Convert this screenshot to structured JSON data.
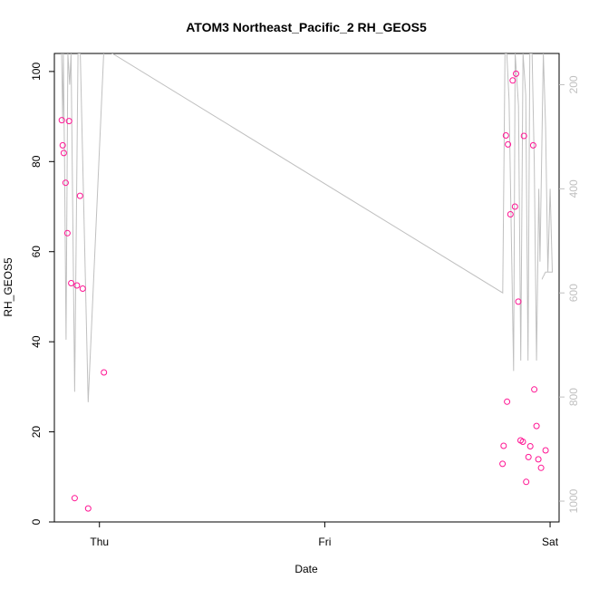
{
  "chart_data": {
    "type": "scatter",
    "title": "ATOM3 Northeast_Pacific_2 RH_GEOS5",
    "xlabel": "Date",
    "ylabel": "RH_GEOS5",
    "x_ticks": [
      {
        "label": "Thu",
        "value": 0
      },
      {
        "label": "Fri",
        "value": 1
      },
      {
        "label": "Sat",
        "value": 2
      }
    ],
    "xlim": [
      -0.2,
      2.04
    ],
    "ylim": [
      0,
      104
    ],
    "y_ticks": [
      0,
      20,
      40,
      60,
      80,
      100
    ],
    "y2_label": "",
    "y2_ticks": [
      200,
      400,
      600,
      800,
      1000
    ],
    "y2_lim": [
      1040,
      140
    ],
    "y2_reversed": true,
    "colors": {
      "points": "#ff1493",
      "line": "#c0c0c0",
      "axis": "#000000",
      "axis_right": "#c0c0c0"
    },
    "series": [
      {
        "kind": "points",
        "axis": "left",
        "points": [
          [
            -0.167,
            89.2
          ],
          [
            -0.163,
            83.6
          ],
          [
            -0.158,
            81.9
          ],
          [
            -0.15,
            75.3
          ],
          [
            -0.142,
            64.1
          ],
          [
            -0.135,
            89.0
          ],
          [
            -0.125,
            53.0
          ],
          [
            -0.11,
            5.3
          ],
          [
            -0.1,
            52.5
          ],
          [
            -0.086,
            72.4
          ],
          [
            -0.074,
            51.8
          ],
          [
            -0.05,
            3.0
          ],
          [
            0.02,
            33.2
          ],
          [
            1.789,
            12.9
          ],
          [
            1.794,
            16.9
          ],
          [
            1.804,
            85.8
          ],
          [
            1.809,
            26.7
          ],
          [
            1.813,
            83.8
          ],
          [
            1.824,
            68.3
          ],
          [
            1.834,
            98.0
          ],
          [
            1.844,
            70.0
          ],
          [
            1.849,
            99.5
          ],
          [
            1.859,
            48.9
          ],
          [
            1.869,
            18.1
          ],
          [
            1.879,
            17.8
          ],
          [
            1.884,
            85.7
          ],
          [
            1.894,
            8.9
          ],
          [
            1.904,
            14.4
          ],
          [
            1.912,
            16.8
          ],
          [
            1.925,
            83.6
          ],
          [
            1.93,
            29.4
          ],
          [
            1.94,
            21.3
          ],
          [
            1.948,
            13.9
          ],
          [
            1.96,
            12.0
          ],
          [
            1.98,
            15.9
          ]
        ]
      },
      {
        "kind": "line",
        "axis": "right",
        "path": [
          [
            -0.168,
            140
          ],
          [
            -0.163,
            270
          ],
          [
            -0.16,
            140
          ],
          [
            -0.155,
            340
          ],
          [
            -0.148,
            690
          ],
          [
            -0.14,
            140
          ],
          [
            -0.132,
            200
          ],
          [
            -0.126,
            140
          ],
          [
            -0.11,
            790
          ],
          [
            -0.095,
            140
          ],
          [
            -0.085,
            140
          ],
          [
            -0.05,
            810
          ],
          [
            0.02,
            130
          ],
          [
            1.79,
            600
          ],
          [
            1.8,
            140
          ],
          [
            1.808,
            140
          ],
          [
            1.818,
            230
          ],
          [
            1.838,
            750
          ],
          [
            1.845,
            140
          ],
          [
            1.86,
            240
          ],
          [
            1.87,
            730
          ],
          [
            1.88,
            140
          ],
          [
            1.892,
            220
          ],
          [
            1.902,
            730
          ],
          [
            1.91,
            140
          ],
          [
            1.92,
            140
          ],
          [
            1.93,
            350
          ],
          [
            1.94,
            730
          ],
          [
            1.95,
            400
          ],
          [
            1.955,
            540
          ],
          [
            1.97,
            140
          ],
          [
            1.98,
            280
          ],
          [
            1.99,
            560
          ],
          [
            2.0,
            560
          ],
          [
            2.01,
            560
          ],
          [
            2.0,
            400
          ],
          [
            1.99,
            560
          ],
          [
            1.985,
            560
          ],
          [
            1.98,
            560
          ],
          [
            1.979,
            561
          ],
          [
            1.977,
            562
          ],
          [
            1.976,
            563
          ],
          [
            1.975,
            564
          ],
          [
            1.974,
            565
          ],
          [
            1.973,
            566
          ],
          [
            1.972,
            567
          ],
          [
            1.97,
            568
          ],
          [
            1.969,
            569
          ],
          [
            1.968,
            570
          ],
          [
            1.967,
            571
          ],
          [
            1.966,
            572
          ],
          [
            1.965,
            573
          ],
          [
            1.964,
            574
          ]
        ]
      }
    ]
  }
}
